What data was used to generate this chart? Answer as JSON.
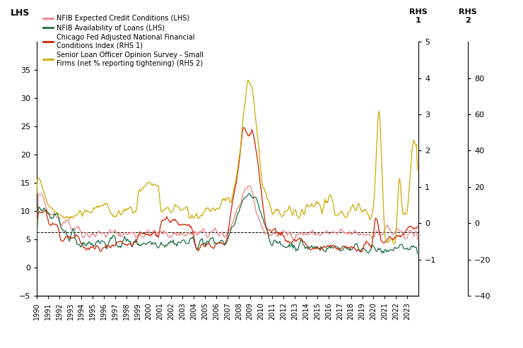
{
  "lhs_ylim": [
    -5,
    40
  ],
  "lhs_yticks": [
    -5,
    0,
    5,
    10,
    15,
    20,
    25,
    30,
    35
  ],
  "rhs1_ylim": [
    -2,
    5
  ],
  "rhs1_yticks": [
    -1,
    0,
    1,
    2,
    3,
    4,
    5
  ],
  "rhs2_ylim": [
    -40,
    100
  ],
  "rhs2_yticks": [
    -40,
    -20,
    0,
    20,
    40,
    60,
    80
  ],
  "hline_lhs": 6.2,
  "colors": {
    "nfib_credit": "#f08080",
    "nfib_loans": "#1a7040",
    "chicago_fed": "#cc2200",
    "sloos": "#ccaa00"
  },
  "legend_entries": [
    {
      "label": "NFIB Expected Credit Conditions (LHS)",
      "color": "#f08080"
    },
    {
      "label": "NFIB Availability of Loans (LHS)",
      "color": "#1a7040"
    },
    {
      "label": "Chicago Fed Adjusted National Financial\nConditions Index (RHS 1)",
      "color": "#cc2200"
    },
    {
      "label": "Senior Loan Officer Opinion Survey - Small\nFirms (net % reporting tightening) (RHS 2)",
      "color": "#ccaa00"
    }
  ],
  "background_color": "#ffffff",
  "xlim": [
    1990,
    2024
  ],
  "year_ticks": [
    1990,
    1991,
    1992,
    1993,
    1994,
    1995,
    1996,
    1997,
    1998,
    1999,
    2000,
    2001,
    2002,
    2003,
    2004,
    2005,
    2006,
    2007,
    2008,
    2009,
    2010,
    2011,
    2012,
    2013,
    2014,
    2015,
    2016,
    2017,
    2018,
    2019,
    2020,
    2021,
    2022,
    2023
  ]
}
